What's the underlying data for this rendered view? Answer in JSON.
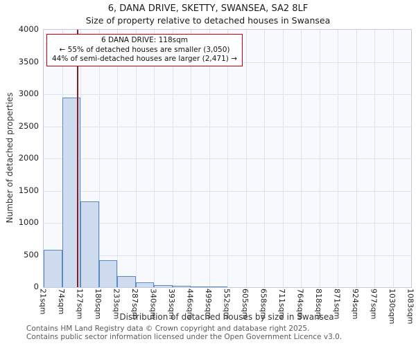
{
  "chart_data": {
    "type": "bar",
    "title": "6, DANA DRIVE, SKETTY, SWANSEA, SA2 8LF",
    "subtitle": "Size of property relative to detached houses in Swansea",
    "xlabel": "Distribution of detached houses by size in Swansea",
    "ylabel": "Number of detached properties",
    "bin_edges_sqm": [
      21,
      74,
      127,
      180,
      233,
      287,
      340,
      393,
      446,
      499,
      552,
      605,
      658,
      711,
      764,
      818,
      871,
      924,
      977,
      1030,
      1083
    ],
    "x_tick_labels": [
      "21sqm",
      "74sqm",
      "127sqm",
      "180sqm",
      "233sqm",
      "287sqm",
      "340sqm",
      "393sqm",
      "446sqm",
      "499sqm",
      "552sqm",
      "605sqm",
      "658sqm",
      "711sqm",
      "764sqm",
      "818sqm",
      "871sqm",
      "924sqm",
      "977sqm",
      "1030sqm",
      "1083sqm"
    ],
    "values": [
      580,
      2950,
      1330,
      420,
      170,
      80,
      35,
      20,
      10,
      5,
      0,
      0,
      0,
      0,
      0,
      0,
      0,
      0,
      0,
      0
    ],
    "y_ticks": [
      0,
      500,
      1000,
      1500,
      2000,
      2500,
      3000,
      3500,
      4000
    ],
    "ylim": [
      0,
      4000
    ],
    "grid": true,
    "legend_position": "none",
    "marker_value_sqm": 118,
    "annotation": {
      "line1": "6 DANA DRIVE: 118sqm",
      "line2": "← 55% of detached houses are smaller (3,050)",
      "line3": "44% of semi-detached houses are larger (2,471) →"
    },
    "colors": {
      "bar_fill": "#cfdcf0",
      "bar_border": "#5b8ac0",
      "marker_line": "#8b1a1a",
      "annotation_border": "#cc0000",
      "grid": "#dde3f0",
      "plot_bg": "#f7f9fd"
    }
  },
  "footer": {
    "line1": "Contains HM Land Registry data © Crown copyright and database right 2025.",
    "line2": "Contains public sector information licensed under the Open Government Licence v3.0."
  }
}
